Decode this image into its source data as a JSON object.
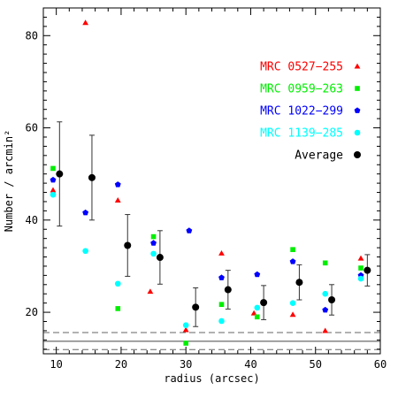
{
  "chart_data": {
    "type": "scatter",
    "xlabel": "radius (arcsec)",
    "ylabel": "Number / arcmin²",
    "xlim": [
      8,
      60
    ],
    "ylim": [
      11,
      86
    ],
    "xticks": [
      10,
      20,
      30,
      40,
      50,
      60
    ],
    "yticks": [
      20,
      40,
      60,
      80
    ],
    "grid": false,
    "legend_position": "top-right",
    "series": [
      {
        "name": "MRC 0527−255",
        "color": "#ff0000",
        "marker": "triangle",
        "x": [
          9.5,
          14.5,
          19.5,
          24.5,
          30.0,
          35.5,
          40.5,
          46.5,
          51.5,
          57.0
        ],
        "y": [
          46.5,
          82.8,
          44.3,
          24.5,
          16.2,
          32.8,
          19.8,
          19.5,
          16.0,
          31.7
        ]
      },
      {
        "name": "MRC 0959−263",
        "color": "#00ee00",
        "marker": "square",
        "x": [
          9.5,
          19.5,
          25.0,
          30.0,
          35.5,
          41.0,
          46.5,
          51.5,
          57.0
        ],
        "y": [
          51.2,
          20.8,
          36.4,
          13.3,
          21.7,
          19.0,
          33.6,
          30.7,
          29.6
        ]
      },
      {
        "name": "MRC 1022−299",
        "color": "#0000ff",
        "marker": "pentagon",
        "x": [
          9.5,
          14.5,
          19.5,
          25.0,
          30.5,
          35.5,
          41.0,
          46.5,
          51.5,
          57.0
        ],
        "y": [
          48.7,
          41.6,
          47.7,
          35.0,
          37.7,
          27.5,
          28.2,
          31.0,
          20.5,
          28.0
        ]
      },
      {
        "name": "MRC 1139−285",
        "color": "#00ffff",
        "marker": "circle",
        "x": [
          9.5,
          14.5,
          19.5,
          25.0,
          30.0,
          35.5,
          41.0,
          46.5,
          51.5,
          57.0
        ],
        "y": [
          45.5,
          33.3,
          26.2,
          32.7,
          17.2,
          18.1,
          21.0,
          22.0,
          24.0,
          27.3
        ]
      }
    ],
    "average": {
      "name": "Average",
      "color": "#000000",
      "marker": "filled-circle",
      "x": [
        10.5,
        15.5,
        21.0,
        26.0,
        31.5,
        36.5,
        42.0,
        47.5,
        52.5,
        58.0
      ],
      "y": [
        50.0,
        49.2,
        34.5,
        31.9,
        21.1,
        24.9,
        22.1,
        26.5,
        22.7,
        29.1
      ],
      "err": [
        11.3,
        9.2,
        6.7,
        5.8,
        4.2,
        4.2,
        3.7,
        3.8,
        3.3,
        3.4
      ]
    },
    "reference_lines": [
      {
        "y": 15.6,
        "style": "dashed"
      },
      {
        "y": 13.7,
        "style": "solid"
      },
      {
        "y": 11.9,
        "style": "dashed"
      }
    ]
  }
}
